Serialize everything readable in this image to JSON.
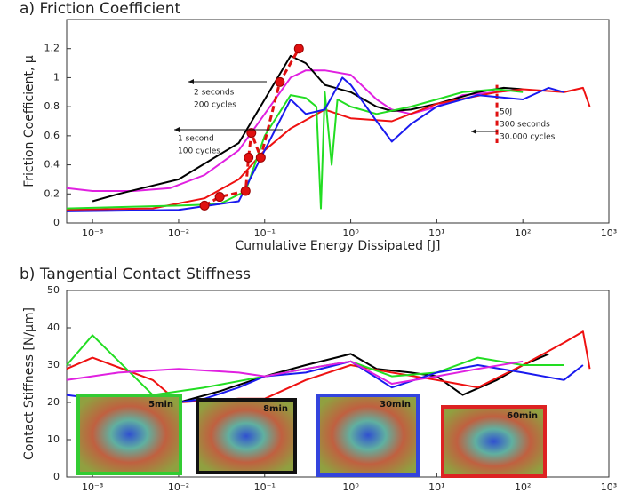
{
  "chart_data": [
    {
      "type": "line",
      "title": "a) Friction Coefficient",
      "xlabel": "Cumulative Energy Dissipated [J]",
      "ylabel": "Friction Coefficient, μ",
      "xlog": true,
      "xlim": [
        0.0005,
        1000
      ],
      "xticks": [
        {
          "value": 0.001,
          "label": "10⁻³"
        },
        {
          "value": 0.01,
          "label": "10⁻²"
        },
        {
          "value": 0.1,
          "label": "10⁻¹"
        },
        {
          "value": 1,
          "label": "10⁰"
        },
        {
          "value": 10,
          "label": "10¹"
        },
        {
          "value": 100,
          "label": "10²"
        },
        {
          "value": 1000,
          "label": "10³"
        }
      ],
      "ylim": [
        0,
        1.4
      ],
      "yticks": [
        0,
        0.2,
        0.4,
        0.6,
        0.8,
        1,
        1.2
      ],
      "series": [
        {
          "color": "#e020e0",
          "x": [
            0.0005,
            0.001,
            0.003,
            0.008,
            0.02,
            0.05,
            0.1,
            0.2,
            0.3,
            0.5,
            1,
            2,
            3,
            5,
            10,
            20,
            50,
            100
          ],
          "values": [
            0.24,
            0.22,
            0.22,
            0.24,
            0.33,
            0.5,
            0.75,
            1.0,
            1.05,
            1.05,
            1.02,
            0.85,
            0.78,
            0.75,
            0.8,
            0.88,
            0.9,
            0.92
          ]
        },
        {
          "color": "#000000",
          "x": [
            0.001,
            0.002,
            0.01,
            0.05,
            0.1,
            0.2,
            0.3,
            0.5,
            1,
            2,
            3,
            5,
            10,
            30,
            60,
            100
          ],
          "values": [
            0.15,
            0.2,
            0.3,
            0.55,
            0.85,
            1.15,
            1.1,
            0.95,
            0.9,
            0.8,
            0.77,
            0.78,
            0.82,
            0.9,
            0.93,
            0.92
          ]
        },
        {
          "color": "#ee1111",
          "x": [
            0.0005,
            0.005,
            0.02,
            0.05,
            0.1,
            0.2,
            0.5,
            1,
            3,
            10,
            50,
            100,
            300,
            500,
            600
          ],
          "values": [
            0.09,
            0.1,
            0.17,
            0.3,
            0.5,
            0.65,
            0.78,
            0.72,
            0.7,
            0.82,
            0.9,
            0.92,
            0.9,
            0.93,
            0.8
          ]
        },
        {
          "color": "#22dd22",
          "x": [
            0.0005,
            0.01,
            0.03,
            0.06,
            0.1,
            0.2,
            0.3,
            0.4,
            0.45,
            0.5,
            0.6,
            0.7,
            1,
            2,
            5,
            10,
            20,
            50,
            100
          ],
          "values": [
            0.1,
            0.12,
            0.13,
            0.22,
            0.6,
            0.88,
            0.86,
            0.8,
            0.1,
            0.9,
            0.4,
            0.85,
            0.8,
            0.75,
            0.8,
            0.85,
            0.9,
            0.92,
            0.9
          ]
        },
        {
          "color": "#1a1aee",
          "x": [
            0.0005,
            0.01,
            0.05,
            0.1,
            0.2,
            0.3,
            0.5,
            0.8,
            1,
            2,
            3,
            5,
            10,
            30,
            100,
            200,
            300
          ],
          "values": [
            0.08,
            0.09,
            0.15,
            0.5,
            0.85,
            0.75,
            0.78,
            1.0,
            0.95,
            0.7,
            0.56,
            0.68,
            0.8,
            0.88,
            0.85,
            0.93,
            0.9
          ]
        },
        {
          "color": "#e01010",
          "dashed": true,
          "markers": true,
          "x": [
            0.02,
            0.03,
            0.06,
            0.065,
            0.07,
            0.09,
            0.15,
            0.25
          ],
          "values": [
            0.12,
            0.18,
            0.22,
            0.45,
            0.62,
            0.45,
            0.97,
            1.2
          ]
        }
      ],
      "vline": {
        "x": 50,
        "color": "#e01010"
      },
      "annotations": [
        [
          "2 seconds",
          "200 cycles"
        ],
        [
          "1 second",
          "100 cycles"
        ],
        [
          "50J",
          "300 seconds",
          "30.000 cycles"
        ]
      ]
    },
    {
      "type": "line",
      "title": "b) Tangential Contact Stiffness",
      "ylabel": "Contact Stiffness [N/μm]",
      "xlog": true,
      "xlim": [
        0.0005,
        1000
      ],
      "xticks": [
        {
          "value": 0.001,
          "label": "10⁻³"
        },
        {
          "value": 0.01,
          "label": "10⁻²"
        },
        {
          "value": 0.1,
          "label": "10⁻¹"
        },
        {
          "value": 1,
          "label": "10⁰"
        },
        {
          "value": 10,
          "label": "10¹"
        },
        {
          "value": 100,
          "label": "10²"
        },
        {
          "value": 1000,
          "label": "10³"
        }
      ],
      "ylim": [
        0,
        50
      ],
      "yticks": [
        0,
        10,
        20,
        30,
        40,
        50
      ],
      "series": [
        {
          "color": "#000000",
          "x": [
            0.002,
            0.01,
            0.03,
            0.1,
            0.3,
            1,
            2,
            5,
            10,
            20,
            50,
            100,
            200
          ],
          "values": [
            19,
            20,
            23,
            27,
            30,
            33,
            29,
            28,
            27,
            22,
            26,
            30,
            33
          ]
        },
        {
          "color": "#ee1111",
          "x": [
            0.0005,
            0.001,
            0.005,
            0.01,
            0.05,
            0.1,
            0.3,
            1,
            3,
            10,
            30,
            100,
            300,
            500,
            600
          ],
          "values": [
            29,
            32,
            26,
            20,
            21,
            21,
            26,
            30,
            28,
            26,
            24,
            30,
            36,
            39,
            29
          ]
        },
        {
          "color": "#22dd22",
          "x": [
            0.0005,
            0.001,
            0.005,
            0.02,
            0.1,
            0.3,
            1,
            3,
            10,
            30,
            100,
            300
          ],
          "values": [
            30,
            38,
            22,
            24,
            27,
            29,
            31,
            27,
            28,
            32,
            30,
            30
          ]
        },
        {
          "color": "#1a1aee",
          "x": [
            0.0005,
            0.005,
            0.02,
            0.05,
            0.1,
            0.3,
            1,
            3,
            10,
            30,
            100,
            300,
            500
          ],
          "values": [
            22,
            19,
            21,
            24,
            27,
            28,
            31,
            24,
            28,
            30,
            28,
            26,
            30
          ]
        },
        {
          "color": "#e020e0",
          "x": [
            0.0005,
            0.002,
            0.01,
            0.05,
            0.1,
            0.3,
            1,
            3,
            10,
            30,
            100
          ],
          "values": [
            26,
            28,
            29,
            28,
            27,
            29,
            31,
            25,
            27,
            29,
            31
          ]
        }
      ],
      "insets": [
        {
          "label": "5min",
          "color": "#33cc33"
        },
        {
          "label": "8min",
          "color": "#111111"
        },
        {
          "label": "30min",
          "color": "#3344dd"
        },
        {
          "label": "60min",
          "color": "#dd2222"
        }
      ]
    }
  ]
}
